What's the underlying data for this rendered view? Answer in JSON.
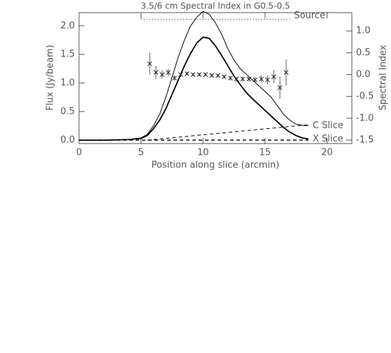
{
  "chart_data": {
    "type": "line",
    "title": "3.5/6 cm Spectral Index in G0.5-0.5",
    "x_label": "Position along slice (arcmin)",
    "y_label": "Flux (Jy/beam)",
    "y2_label": "Spectral Index",
    "xlim": [
      0,
      22
    ],
    "ylim": [
      -0.06,
      2.23
    ],
    "y2lim": [
      -1.58,
      1.42
    ],
    "xticks": [
      0,
      5,
      10,
      15,
      20
    ],
    "yticks": [
      {
        "value": 0,
        "label": "0.0"
      },
      0.5,
      {
        "value": 1,
        "label": "1.0"
      },
      1.5,
      {
        "value": 2,
        "label": "2.0"
      }
    ],
    "y2ticks": [
      {
        "value": 1,
        "label": "1.0"
      },
      0.5,
      {
        "value": 0,
        "label": "0.0"
      },
      -0.5,
      {
        "value": -1,
        "label": "-1.0"
      },
      -1.5
    ],
    "color": "#000000",
    "series": [
      {
        "name": "C Slice",
        "style": "solid",
        "width": 1,
        "x": [
          0,
          2,
          4,
          5,
          5.5,
          6,
          6.5,
          7,
          7.5,
          8,
          8.5,
          9,
          9.5,
          10,
          10.5,
          11,
          11.5,
          12,
          12.5,
          13,
          13.5,
          14,
          14.5,
          15,
          15.5,
          16,
          16.5,
          17,
          17.5,
          18,
          18.5
        ],
        "values": [
          0.0,
          0.0,
          0.01,
          0.04,
          0.1,
          0.25,
          0.45,
          0.75,
          1.1,
          1.45,
          1.75,
          2.0,
          2.15,
          2.25,
          2.2,
          2.05,
          1.85,
          1.6,
          1.4,
          1.25,
          1.15,
          1.05,
          0.95,
          0.85,
          0.75,
          0.6,
          0.45,
          0.35,
          0.28,
          0.26,
          0.25
        ]
      },
      {
        "name": "X Slice",
        "style": "solid",
        "width": 1.8,
        "x": [
          0,
          2,
          4,
          5,
          5.5,
          6,
          6.5,
          7,
          7.5,
          8,
          8.5,
          9,
          9.5,
          10,
          10.5,
          11,
          11.5,
          12,
          12.5,
          13,
          13.5,
          14,
          14.5,
          15,
          15.5,
          16,
          16.5,
          17,
          17.5,
          18,
          18.5
        ],
        "values": [
          0.0,
          0.0,
          0.01,
          0.03,
          0.08,
          0.2,
          0.35,
          0.55,
          0.8,
          1.05,
          1.3,
          1.52,
          1.7,
          1.8,
          1.78,
          1.65,
          1.48,
          1.3,
          1.12,
          0.97,
          0.83,
          0.72,
          0.62,
          0.52,
          0.42,
          0.32,
          0.22,
          0.14,
          0.08,
          0.04,
          0.02
        ]
      },
      {
        "style": "dashed",
        "width": 1,
        "x": [
          5.5,
          18.5
        ],
        "values": [
          0,
          0.27
        ]
      },
      {
        "style": "dashed",
        "width": 1.4,
        "x": [
          0,
          18.5
        ],
        "values": [
          0,
          0
        ]
      },
      {
        "name": "Source",
        "style": "dotted",
        "width": 1,
        "axis": "y2",
        "x": [
          5,
          17
        ],
        "values": [
          1.27,
          1.27
        ]
      },
      {
        "style": "none",
        "marker": "x",
        "axis": "y2",
        "x": [
          5.7,
          6.2,
          6.7,
          7.2,
          7.7,
          8.2,
          8.7,
          9.2,
          9.7,
          10.2,
          10.7,
          11.2,
          11.7,
          12.2,
          12.7,
          13.2,
          13.7,
          14.2,
          14.7,
          15.2,
          15.7,
          16.2,
          16.7
        ],
        "values": [
          0.25,
          0.05,
          0.0,
          0.05,
          -0.08,
          0.0,
          0.02,
          0.0,
          0.0,
          0.0,
          -0.02,
          -0.02,
          -0.05,
          -0.08,
          -0.1,
          -0.1,
          -0.1,
          -0.12,
          -0.1,
          -0.12,
          -0.05,
          -0.3,
          0.05
        ],
        "errors": [
          0.25,
          0.15,
          0.1,
          0.08,
          0.06,
          0.05,
          0.04,
          0.04,
          0.04,
          0.04,
          0.04,
          0.04,
          0.04,
          0.05,
          0.05,
          0.06,
          0.06,
          0.07,
          0.08,
          0.1,
          0.15,
          0.25,
          0.3
        ]
      }
    ]
  }
}
